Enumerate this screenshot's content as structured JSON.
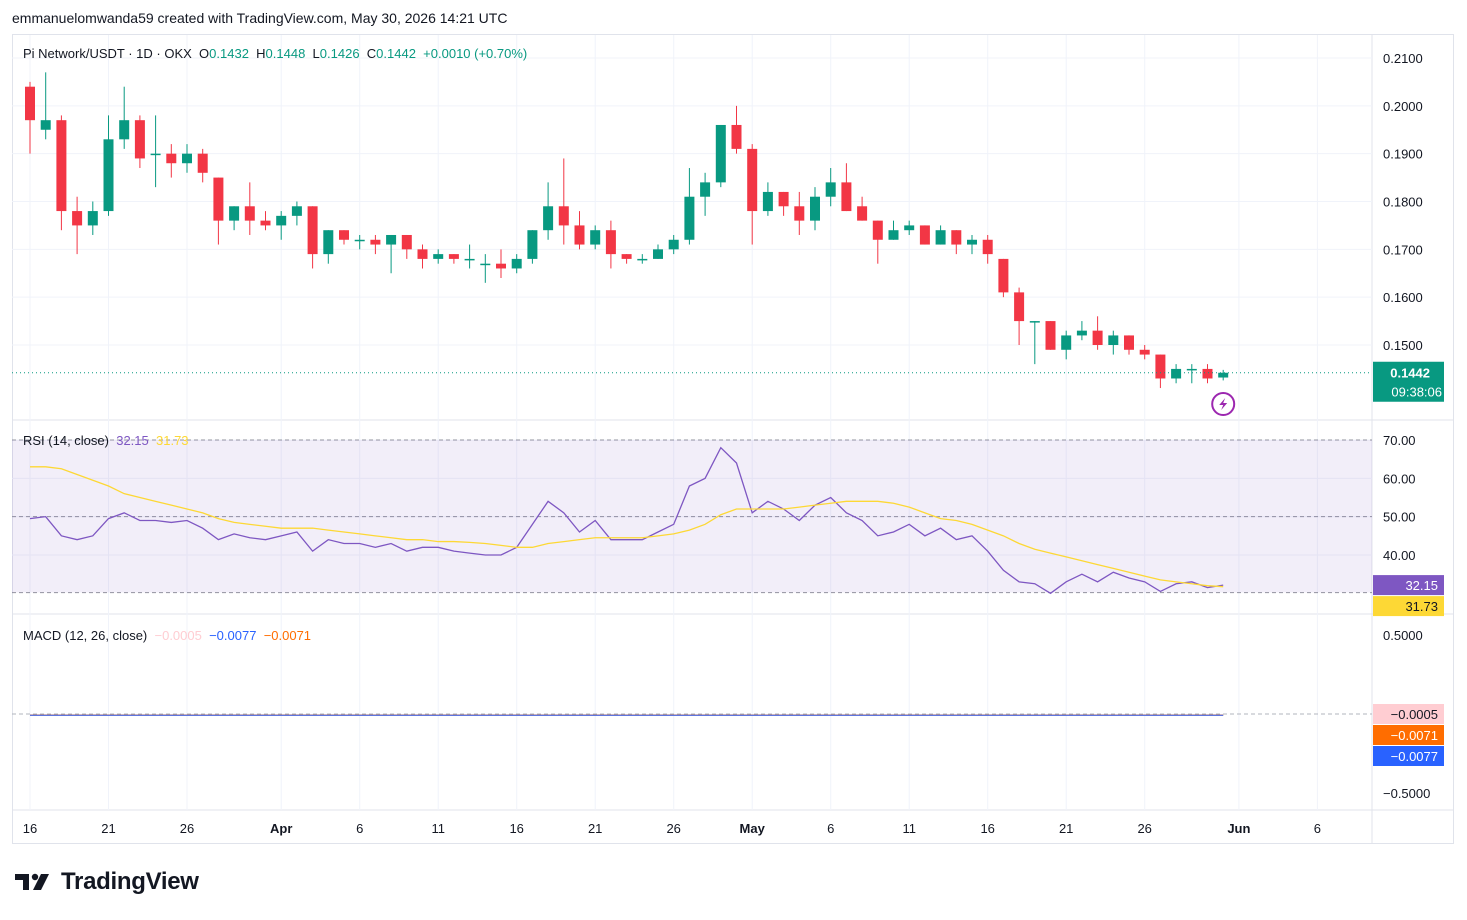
{
  "header": {
    "attribution": "emmanuelomwanda59 created with TradingView.com, May 30, 2026 14:21 UTC"
  },
  "legend": {
    "symbol": "Pi Network/USDT · 1D · OKX",
    "o_label": "O",
    "o_value": "0.1432",
    "h_label": "H",
    "h_value": "0.1448",
    "l_label": "L",
    "l_value": "0.1426",
    "c_label": "C",
    "c_value": "0.1442",
    "change": "+0.0010 (+0.70%)"
  },
  "price_tag": {
    "value": "0.1442",
    "countdown": "09:38:06"
  },
  "rsi_legend": {
    "label": "RSI (14, close)",
    "value1": "32.15",
    "value2": "31.73"
  },
  "macd_legend": {
    "label": "MACD (12, 26, close)",
    "hist": "−0.0005",
    "macd": "−0.0077",
    "signal": "−0.0071"
  },
  "brand": {
    "name": "TradingView"
  },
  "colors": {
    "up": "#089981",
    "down": "#f23645",
    "rsi": "#7e57c2",
    "rsi_ma": "#fdd835",
    "macd": "#2962ff",
    "signal": "#ff6d00",
    "hist_down": "#ffcdd2"
  },
  "chart_data": [
    {
      "type": "candlestick",
      "title": "Pi Network/USDT · 1D · OKX",
      "ylim": [
        0.14,
        0.2115
      ],
      "y_ticks": [
        "0.2100",
        "0.2000",
        "0.1900",
        "0.1800",
        "0.1700",
        "0.1600",
        "0.1500"
      ],
      "x_ticks": [
        {
          "day": 0,
          "label": "16"
        },
        {
          "day": 5,
          "label": "21"
        },
        {
          "day": 10,
          "label": "26"
        },
        {
          "day": 16,
          "label": "Apr"
        },
        {
          "day": 21,
          "label": "6"
        },
        {
          "day": 26,
          "label": "11"
        },
        {
          "day": 31,
          "label": "16"
        },
        {
          "day": 36,
          "label": "21"
        },
        {
          "day": 41,
          "label": "26"
        },
        {
          "day": 46,
          "label": "May"
        },
        {
          "day": 51,
          "label": "6"
        },
        {
          "day": 56,
          "label": "11"
        },
        {
          "day": 61,
          "label": "16"
        },
        {
          "day": 66,
          "label": "21"
        },
        {
          "day": 71,
          "label": "26"
        },
        {
          "day": 77,
          "label": "Jun"
        },
        {
          "day": 82,
          "label": "6"
        }
      ],
      "first_day": "Mar 15",
      "candles": [
        [
          0.204,
          0.205,
          0.19,
          0.197
        ],
        [
          0.195,
          0.207,
          0.193,
          0.197
        ],
        [
          0.197,
          0.198,
          0.174,
          0.178
        ],
        [
          0.178,
          0.181,
          0.169,
          0.175
        ],
        [
          0.175,
          0.18,
          0.173,
          0.178
        ],
        [
          0.178,
          0.198,
          0.177,
          0.193
        ],
        [
          0.193,
          0.204,
          0.191,
          0.197
        ],
        [
          0.197,
          0.198,
          0.187,
          0.189
        ],
        [
          0.19,
          0.198,
          0.183,
          0.19
        ],
        [
          0.19,
          0.192,
          0.185,
          0.188
        ],
        [
          0.188,
          0.192,
          0.186,
          0.19
        ],
        [
          0.19,
          0.191,
          0.184,
          0.186
        ],
        [
          0.185,
          0.185,
          0.171,
          0.176
        ],
        [
          0.176,
          0.179,
          0.174,
          0.179
        ],
        [
          0.179,
          0.184,
          0.173,
          0.176
        ],
        [
          0.176,
          0.178,
          0.174,
          0.175
        ],
        [
          0.175,
          0.178,
          0.172,
          0.177
        ],
        [
          0.177,
          0.18,
          0.175,
          0.179
        ],
        [
          0.179,
          0.179,
          0.166,
          0.169
        ],
        [
          0.169,
          0.174,
          0.167,
          0.174
        ],
        [
          0.174,
          0.174,
          0.171,
          0.172
        ],
        [
          0.172,
          0.173,
          0.17,
          0.172
        ],
        [
          0.172,
          0.173,
          0.169,
          0.171
        ],
        [
          0.171,
          0.173,
          0.165,
          0.173
        ],
        [
          0.173,
          0.173,
          0.168,
          0.17
        ],
        [
          0.17,
          0.171,
          0.166,
          0.168
        ],
        [
          0.168,
          0.17,
          0.167,
          0.169
        ],
        [
          0.169,
          0.169,
          0.167,
          0.168
        ],
        [
          0.168,
          0.171,
          0.166,
          0.168
        ],
        [
          0.167,
          0.169,
          0.163,
          0.167
        ],
        [
          0.167,
          0.17,
          0.164,
          0.166
        ],
        [
          0.166,
          0.169,
          0.165,
          0.168
        ],
        [
          0.168,
          0.174,
          0.167,
          0.174
        ],
        [
          0.174,
          0.184,
          0.172,
          0.179
        ],
        [
          0.179,
          0.189,
          0.171,
          0.175
        ],
        [
          0.175,
          0.178,
          0.17,
          0.171
        ],
        [
          0.171,
          0.175,
          0.17,
          0.174
        ],
        [
          0.174,
          0.176,
          0.166,
          0.169
        ],
        [
          0.169,
          0.169,
          0.167,
          0.168
        ],
        [
          0.168,
          0.169,
          0.167,
          0.168
        ],
        [
          0.168,
          0.171,
          0.168,
          0.17
        ],
        [
          0.17,
          0.173,
          0.169,
          0.172
        ],
        [
          0.172,
          0.187,
          0.171,
          0.181
        ],
        [
          0.181,
          0.186,
          0.177,
          0.184
        ],
        [
          0.184,
          0.196,
          0.183,
          0.196
        ],
        [
          0.196,
          0.2,
          0.19,
          0.191
        ],
        [
          0.191,
          0.192,
          0.171,
          0.178
        ],
        [
          0.178,
          0.184,
          0.177,
          0.182
        ],
        [
          0.182,
          0.182,
          0.177,
          0.179
        ],
        [
          0.179,
          0.182,
          0.173,
          0.176
        ],
        [
          0.176,
          0.183,
          0.174,
          0.181
        ],
        [
          0.181,
          0.187,
          0.179,
          0.184
        ],
        [
          0.184,
          0.188,
          0.178,
          0.178
        ],
        [
          0.179,
          0.181,
          0.176,
          0.176
        ],
        [
          0.176,
          0.176,
          0.167,
          0.172
        ],
        [
          0.172,
          0.176,
          0.172,
          0.174
        ],
        [
          0.174,
          0.176,
          0.173,
          0.175
        ],
        [
          0.175,
          0.175,
          0.171,
          0.171
        ],
        [
          0.171,
          0.175,
          0.171,
          0.174
        ],
        [
          0.174,
          0.174,
          0.169,
          0.171
        ],
        [
          0.171,
          0.173,
          0.169,
          0.172
        ],
        [
          0.172,
          0.173,
          0.167,
          0.169
        ],
        [
          0.168,
          0.168,
          0.16,
          0.161
        ],
        [
          0.161,
          0.162,
          0.15,
          0.155
        ],
        [
          0.155,
          0.155,
          0.146,
          0.155
        ],
        [
          0.155,
          0.155,
          0.149,
          0.149
        ],
        [
          0.149,
          0.153,
          0.147,
          0.152
        ],
        [
          0.152,
          0.155,
          0.151,
          0.153
        ],
        [
          0.153,
          0.156,
          0.149,
          0.15
        ],
        [
          0.15,
          0.153,
          0.148,
          0.152
        ],
        [
          0.152,
          0.152,
          0.148,
          0.149
        ],
        [
          0.149,
          0.15,
          0.147,
          0.148
        ],
        [
          0.148,
          0.148,
          0.141,
          0.143
        ],
        [
          0.143,
          0.146,
          0.142,
          0.145
        ],
        [
          0.145,
          0.146,
          0.142,
          0.145
        ],
        [
          0.145,
          0.146,
          0.142,
          0.143
        ],
        [
          0.1432,
          0.1448,
          0.1426,
          0.1442
        ]
      ]
    },
    {
      "type": "line",
      "title": "RSI (14, close)",
      "ylim": [
        30.2,
        72.5
      ],
      "y_ticks": [
        "70.00",
        "60.00",
        "50.00",
        "40.00"
      ],
      "band": [
        30,
        70
      ],
      "midline": 50,
      "series": [
        {
          "name": "RSI",
          "values": [
            49.5,
            50,
            45,
            44,
            45,
            49.5,
            51,
            49,
            49,
            48.5,
            49,
            47,
            44,
            45.5,
            44.5,
            44,
            45,
            46,
            41,
            44,
            43,
            43,
            42,
            43,
            41,
            42,
            42,
            41,
            40.5,
            40,
            40,
            42,
            48,
            54,
            51,
            46,
            49,
            44,
            44,
            44,
            46,
            48,
            58,
            60,
            68,
            64,
            51,
            54,
            52,
            49,
            53,
            55,
            51,
            49,
            45,
            46,
            48,
            45,
            47,
            44,
            45,
            41,
            36,
            33,
            32.5,
            30,
            33,
            35,
            33,
            35.5,
            34,
            33,
            30.5,
            32.5,
            33,
            31.5,
            32.15
          ]
        },
        {
          "name": "RSI-based MA",
          "values": [
            63,
            63,
            62.5,
            61,
            59.5,
            58,
            56,
            55,
            54,
            53,
            52,
            51,
            49.5,
            48.5,
            48,
            47.5,
            47,
            47,
            47,
            46.5,
            46,
            45.5,
            45,
            44.5,
            44,
            44,
            43.5,
            43.5,
            43.3,
            43,
            42.5,
            42,
            42,
            43,
            43.5,
            44,
            44.5,
            44.5,
            44.5,
            44.5,
            45,
            45.5,
            46.5,
            48,
            50.5,
            52,
            52,
            52,
            52,
            52.5,
            53,
            53.5,
            54,
            54,
            54,
            53.5,
            52.5,
            51,
            49.5,
            49,
            48,
            46.5,
            45,
            43,
            41.5,
            40.5,
            39.5,
            38.5,
            37.5,
            36.5,
            35.5,
            34.5,
            33.5,
            33,
            32.5,
            32,
            31.73
          ]
        }
      ]
    },
    {
      "type": "line",
      "title": "MACD (12, 26, close)",
      "ylim": [
        -0.5,
        0.5
      ],
      "y_ticks": [
        "0.5000",
        "−0.5000"
      ],
      "series": [
        {
          "name": "MACD",
          "values": [
            -0.0077
          ]
        },
        {
          "name": "Signal",
          "values": [
            -0.0071
          ]
        },
        {
          "name": "Histogram",
          "values": [
            -0.0005
          ]
        }
      ]
    }
  ]
}
